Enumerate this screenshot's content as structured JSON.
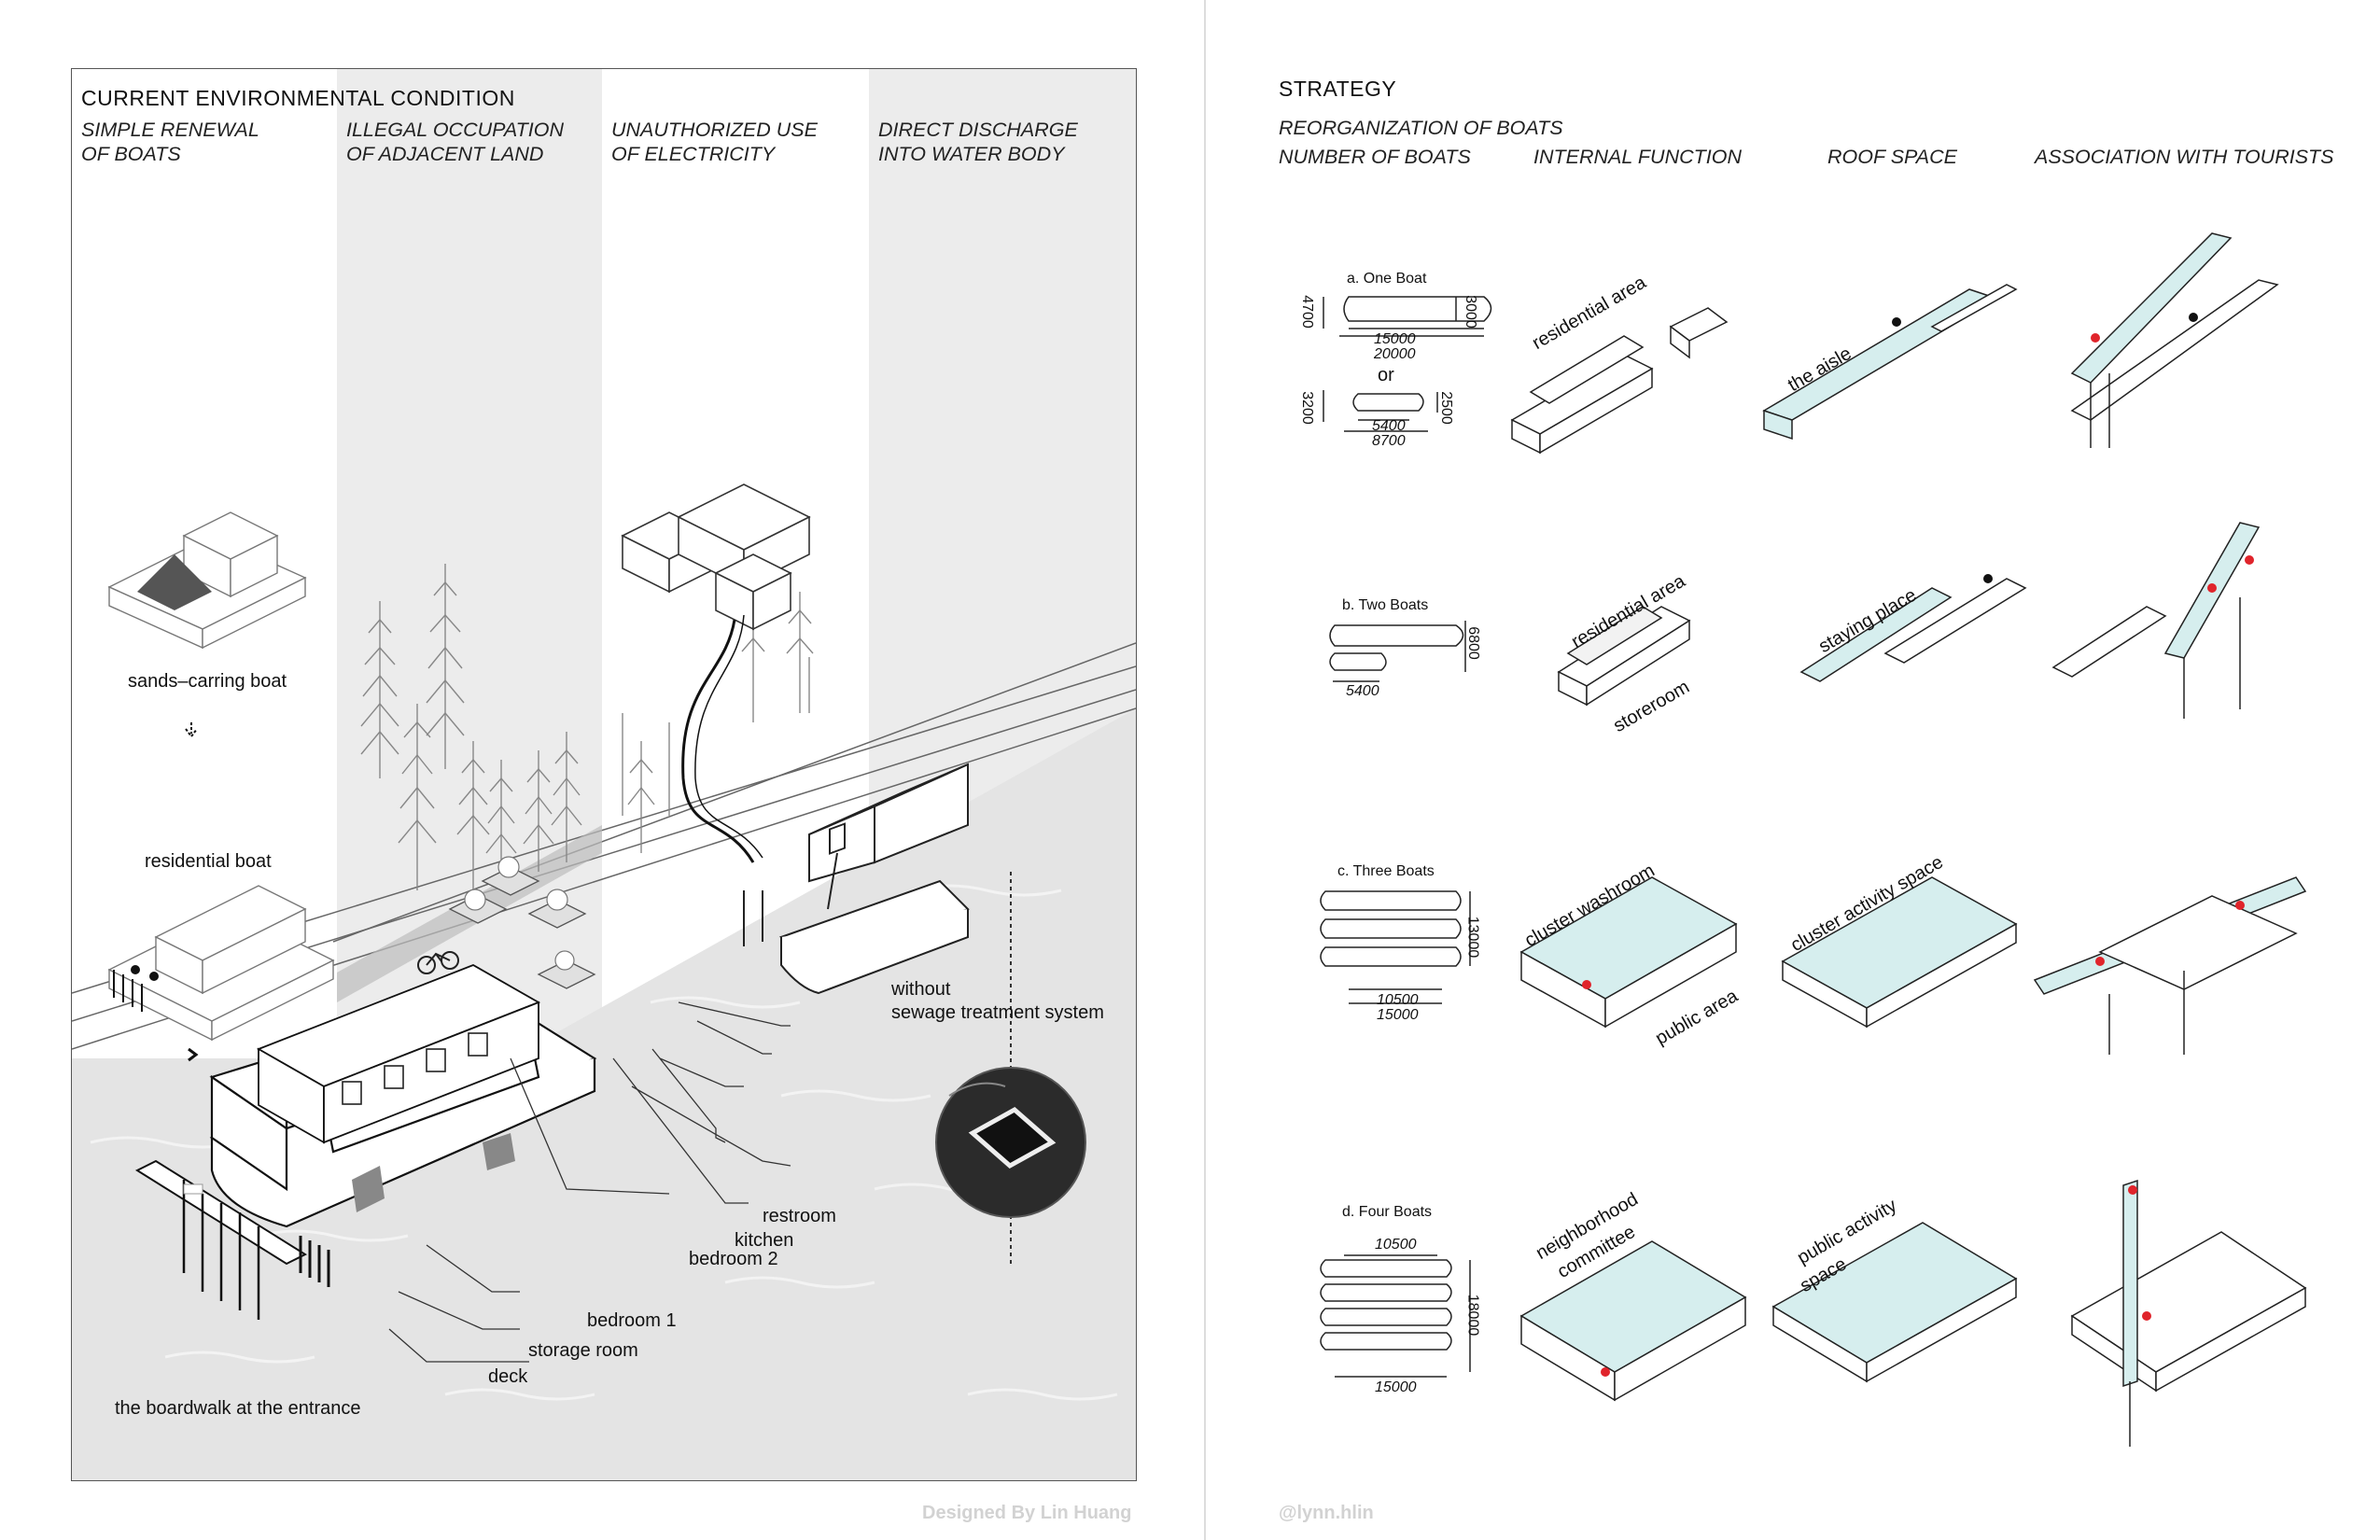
{
  "left_panel": {
    "title": "CURRENT ENVIRONMENTAL CONDITION",
    "columns": [
      {
        "line1": "SIMPLE RENEWAL",
        "line2": "OF BOATS"
      },
      {
        "line1": "ILLEGAL OCCUPATION",
        "line2": "OF ADJACENT LAND"
      },
      {
        "line1": "UNAUTHORIZED USE",
        "line2": "OF ELECTRICITY"
      },
      {
        "line1": "DIRECT DISCHARGE",
        "line2": "INTO WATER BODY"
      }
    ],
    "labels": {
      "sands_boat": "sands–carring boat",
      "residential_boat": "residential boat",
      "without_line1": "without",
      "without_line2": "sewage treatment system",
      "restroom": "restroom",
      "kitchen": "kitchen",
      "bedroom2": "bedroom 2",
      "bedroom1": "bedroom 1",
      "storage": "storage room",
      "deck": "deck",
      "boardwalk": "the boardwalk at the entrance"
    },
    "credit": "Designed By Lin Huang"
  },
  "right_panel": {
    "title": "STRATEGY",
    "subtitle": "REORGANIZATION OF BOATS",
    "columns": [
      "NUMBER OF BOATS",
      "INTERNAL FUNCTION",
      "ROOF SPACE",
      "ASSOCIATION WITH TOURISTS"
    ],
    "rows": [
      {
        "label": "a. One Boat",
        "dims": [
          "4700",
          "3000",
          "15000",
          "20000",
          "or",
          "3200",
          "2500",
          "5400",
          "8700"
        ],
        "internal": "residential area",
        "roof": "the aisle"
      },
      {
        "label": "b. Two Boats",
        "dims": [
          "6800",
          "5400"
        ],
        "internal": "residential area",
        "internal2": "storeroom",
        "roof": "staying place"
      },
      {
        "label": "c. Three Boats",
        "dims": [
          "13000",
          "10500",
          "15000"
        ],
        "internal": "cluster washroom",
        "internal2": "public area",
        "roof": "cluster activity space"
      },
      {
        "label": "d. Four Boats",
        "dims": [
          "10500",
          "18000",
          "15000"
        ],
        "internal": "neighborhood",
        "internal_b": "committee",
        "roof": "public activity",
        "roof_b": "space"
      }
    ],
    "credit": "@lynn.hlin"
  },
  "colors": {
    "accent_red": "#e0242b",
    "roof_cyan": "#d6eeee",
    "strip_gray": "#ececec",
    "water": "#e6e6e6"
  }
}
